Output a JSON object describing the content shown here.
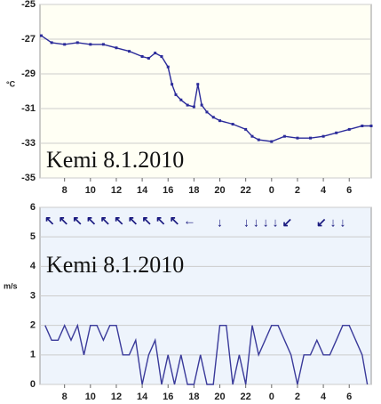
{
  "chart_data": [
    {
      "type": "line",
      "y_label": "°C",
      "annotation": "Kemi 8.1.2010",
      "xlim": [
        6.1,
        31.7
      ],
      "xticks": [
        8,
        10,
        12,
        14,
        16,
        18,
        20,
        22,
        {
          "value": 24,
          "label": "0"
        },
        {
          "value": 26,
          "label": "2"
        },
        {
          "value": 28,
          "label": "4"
        },
        {
          "value": 30,
          "label": "6"
        }
      ],
      "ylim": [
        -35,
        -25
      ],
      "yticks": [
        -35,
        -33,
        -31,
        -29,
        -27,
        -25
      ],
      "grid": true,
      "markers": true,
      "series": [
        {
          "color": "#2b2b9a",
          "x": [
            6.2,
            7,
            8,
            9,
            10,
            11,
            12,
            13,
            14,
            14.5,
            15,
            15.5,
            16,
            16.3,
            16.6,
            17,
            17.5,
            18,
            18.3,
            18.6,
            19,
            19.5,
            20,
            21,
            22,
            22.5,
            23,
            24,
            25,
            26,
            27,
            28,
            29,
            30,
            31,
            31.7
          ],
          "values": [
            -26.8,
            -27.2,
            -27.3,
            -27.2,
            -27.3,
            -27.3,
            -27.5,
            -27.7,
            -28.0,
            -28.1,
            -27.8,
            -28.0,
            -28.6,
            -29.6,
            -30.2,
            -30.5,
            -30.8,
            -30.9,
            -29.6,
            -30.8,
            -31.2,
            -31.5,
            -31.7,
            -31.9,
            -32.2,
            -32.6,
            -32.8,
            -32.9,
            -32.6,
            -32.7,
            -32.7,
            -32.6,
            -32.4,
            -32.2,
            -32.0,
            -32.0
          ]
        }
      ]
    },
    {
      "type": "line",
      "y_label": "m/s",
      "annotation": "Kemi 8.1.2010",
      "xlim": [
        6.1,
        31.7
      ],
      "xticks": [
        8,
        10,
        12,
        14,
        16,
        18,
        20,
        22,
        {
          "value": 24,
          "label": "0"
        },
        {
          "value": 26,
          "label": "2"
        },
        {
          "value": 28,
          "label": "4"
        },
        {
          "value": 30,
          "label": "6"
        }
      ],
      "ylim": [
        0,
        6
      ],
      "yticks": [
        0,
        1,
        2,
        3,
        4,
        5,
        6
      ],
      "grid": true,
      "markers": false,
      "series": [
        {
          "color": "#3a3a9a",
          "x": [
            6.5,
            7,
            7.5,
            8,
            8.5,
            9,
            9.5,
            10,
            10.5,
            11,
            11.5,
            12,
            12.5,
            13,
            13.5,
            14,
            14.5,
            15,
            15.5,
            16,
            16.5,
            17,
            17.5,
            18,
            18.5,
            19,
            19.5,
            20,
            20.5,
            21,
            21.5,
            22,
            22.5,
            23,
            23.5,
            24,
            24.5,
            25,
            25.5,
            26,
            26.5,
            27,
            27.5,
            28,
            28.5,
            29,
            29.5,
            30,
            30.5,
            31,
            31.4
          ],
          "values": [
            2,
            1.5,
            1.5,
            2,
            1.5,
            2,
            1,
            2,
            2,
            1.5,
            2,
            2,
            1,
            1,
            1.5,
            0,
            1,
            1.5,
            0,
            1,
            0,
            1,
            0,
            0,
            1,
            0,
            0,
            2,
            2,
            0,
            1,
            0,
            2,
            1,
            1.5,
            2,
            2,
            1.5,
            1,
            0,
            1,
            1,
            1.5,
            1,
            1,
            1.5,
            2,
            2,
            1.5,
            1,
            0
          ]
        }
      ]
    }
  ]
}
